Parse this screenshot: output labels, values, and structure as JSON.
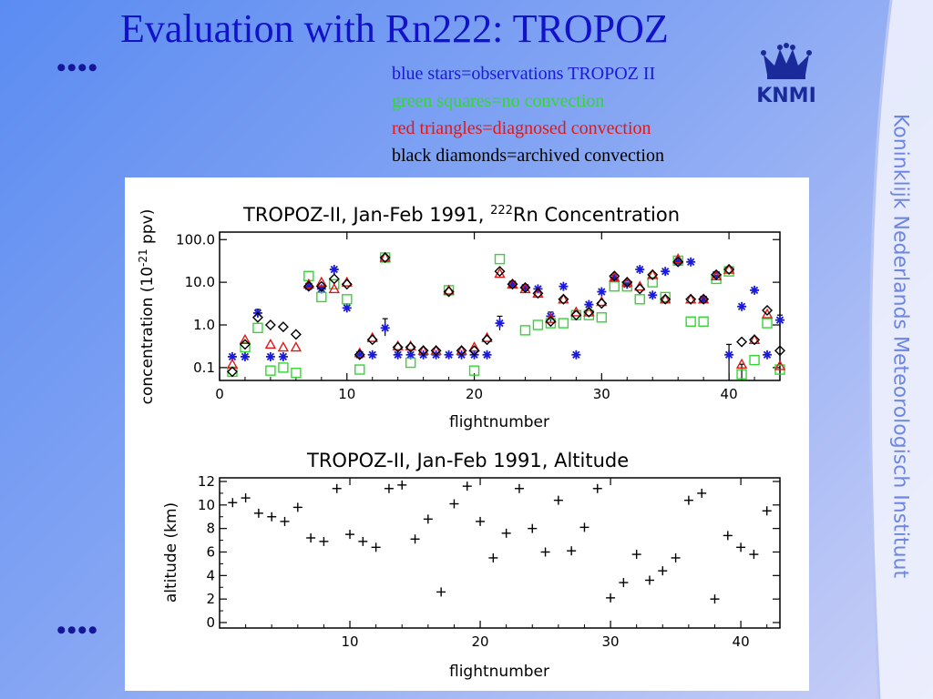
{
  "slide": {
    "title": "Evaluation with Rn222: TROPOZ",
    "bullet_top": "••••",
    "bullet_bottom": "••••",
    "legend": [
      {
        "text": "blue stars=observations TROPOZ II",
        "color": "#1a1ad8"
      },
      {
        "text": "green squares=no convection",
        "color": "#33d633"
      },
      {
        "text": "red triangles=diagnosed convection",
        "color": "#e01818"
      },
      {
        "text": "black diamonds=archived convection",
        "color": "#000000"
      }
    ],
    "logo_text": "KNMI",
    "side_text": "Koninklijk Nederlands Meteorologisch Instituut",
    "colors": {
      "title": "#1212c8",
      "logo": "#1a2a9a",
      "side_text": "#6e86e0"
    }
  },
  "chart_data": [
    {
      "type": "scatter",
      "title_main": "TROPOZ-II, Jan-Feb 1991, ",
      "title_sup": "222",
      "title_tail": "Rn Concentration",
      "ylabel_main": "concentration (10",
      "ylabel_sup": "-21",
      "ylabel_tail": " ppv)",
      "xlabel": "flightnumber",
      "yscale": "log",
      "xlim": [
        0,
        44
      ],
      "ylim": [
        0.05,
        150
      ],
      "xticks": [
        0,
        10,
        20,
        30,
        40
      ],
      "xtick_labels": [
        "0",
        "10",
        "20",
        "30",
        "40"
      ],
      "yticks": [
        0.1,
        1,
        10,
        100
      ],
      "ytick_labels": [
        "0.1",
        "1.0",
        "10.0",
        "100.0"
      ],
      "series": [
        {
          "marker": "star",
          "color": "#1a1ad8",
          "points": [
            [
              1,
              0.18
            ],
            [
              2,
              0.18
            ],
            [
              3,
              1.9
            ],
            [
              4,
              0.18
            ],
            [
              5,
              0.18
            ],
            [
              7,
              8
            ],
            [
              8,
              7
            ],
            [
              9,
              20
            ],
            [
              10,
              2.5
            ],
            [
              11,
              0.2
            ],
            [
              12,
              0.2
            ],
            [
              13,
              0.85
            ],
            [
              14,
              0.2
            ],
            [
              15,
              0.2
            ],
            [
              16,
              0.2
            ],
            [
              17,
              0.2
            ],
            [
              18,
              0.2
            ],
            [
              19,
              0.2
            ],
            [
              20,
              0.2
            ],
            [
              21,
              0.2
            ],
            [
              22,
              1.1
            ],
            [
              23,
              9
            ],
            [
              24,
              7.5
            ],
            [
              25,
              7
            ],
            [
              26,
              1.6
            ],
            [
              27,
              8
            ],
            [
              28,
              0.2
            ],
            [
              29,
              3
            ],
            [
              30,
              6
            ],
            [
              31,
              13
            ],
            [
              32,
              9
            ],
            [
              33,
              20
            ],
            [
              34,
              5
            ],
            [
              35,
              18
            ],
            [
              36,
              30
            ],
            [
              37,
              30
            ],
            [
              38,
              4
            ],
            [
              39,
              15
            ],
            [
              40,
              0.2
            ],
            [
              41,
              2.7
            ],
            [
              42,
              6.5
            ],
            [
              43,
              0.2
            ],
            [
              44,
              1.3
            ]
          ]
        },
        {
          "marker": "square",
          "color": "#33d633",
          "points": [
            [
              1,
              0.08
            ],
            [
              2,
              0.3
            ],
            [
              3,
              0.85
            ],
            [
              4,
              0.085
            ],
            [
              5,
              0.1
            ],
            [
              6,
              0.075
            ],
            [
              7,
              14
            ],
            [
              8,
              4.5
            ],
            [
              9,
              9
            ],
            [
              10,
              4
            ],
            [
              11,
              0.09
            ],
            [
              13,
              38
            ],
            [
              15,
              0.13
            ],
            [
              18,
              6.5
            ],
            [
              20,
              0.085
            ],
            [
              22,
              35
            ],
            [
              24,
              0.75
            ],
            [
              25,
              1
            ],
            [
              26,
              1.1
            ],
            [
              27,
              1.1
            ],
            [
              28,
              1.7
            ],
            [
              29,
              1.7
            ],
            [
              30,
              1.5
            ],
            [
              31,
              8
            ],
            [
              32,
              8
            ],
            [
              33,
              4
            ],
            [
              34,
              10
            ],
            [
              35,
              4.5
            ],
            [
              36,
              32
            ],
            [
              37,
              1.2
            ],
            [
              38,
              1.2
            ],
            [
              39,
              12
            ],
            [
              40,
              18
            ],
            [
              41,
              0.07
            ],
            [
              42,
              0.15
            ],
            [
              43,
              1.1
            ],
            [
              44,
              0.09
            ]
          ]
        },
        {
          "marker": "triangle",
          "color": "#e01818",
          "points": [
            [
              1,
              0.12
            ],
            [
              2,
              0.45
            ],
            [
              4,
              0.35
            ],
            [
              5,
              0.3
            ],
            [
              6,
              0.3
            ],
            [
              7,
              9
            ],
            [
              8,
              10
            ],
            [
              9,
              7
            ],
            [
              10,
              10
            ],
            [
              11,
              0.22
            ],
            [
              12,
              0.5
            ],
            [
              13,
              38
            ],
            [
              14,
              0.32
            ],
            [
              15,
              0.32
            ],
            [
              16,
              0.25
            ],
            [
              17,
              0.25
            ],
            [
              18,
              6.5
            ],
            [
              19,
              0.25
            ],
            [
              20,
              0.3
            ],
            [
              21,
              0.5
            ],
            [
              22,
              16
            ],
            [
              23,
              9
            ],
            [
              24,
              7
            ],
            [
              25,
              5.5
            ],
            [
              26,
              1.4
            ],
            [
              27,
              4
            ],
            [
              28,
              2
            ],
            [
              29,
              2
            ],
            [
              30,
              3.5
            ],
            [
              31,
              13
            ],
            [
              32,
              10
            ],
            [
              33,
              8
            ],
            [
              34,
              15
            ],
            [
              35,
              4
            ],
            [
              36,
              35
            ],
            [
              37,
              4
            ],
            [
              38,
              4
            ],
            [
              39,
              14
            ],
            [
              40,
              20
            ],
            [
              41,
              0.12
            ],
            [
              42,
              0.45
            ],
            [
              43,
              1.8
            ],
            [
              44,
              0.11
            ]
          ]
        },
        {
          "marker": "diamond",
          "color": "#000000",
          "points": [
            [
              1,
              0.08
            ],
            [
              2,
              0.35
            ],
            [
              3,
              1.5
            ],
            [
              4,
              1.0
            ],
            [
              5,
              0.9
            ],
            [
              6,
              0.6
            ],
            [
              7,
              8
            ],
            [
              8,
              8
            ],
            [
              9,
              12
            ],
            [
              10,
              9
            ],
            [
              11,
              0.2
            ],
            [
              12,
              0.45
            ],
            [
              13,
              38
            ],
            [
              14,
              0.3
            ],
            [
              15,
              0.3
            ],
            [
              16,
              0.25
            ],
            [
              17,
              0.25
            ],
            [
              18,
              6
            ],
            [
              19,
              0.25
            ],
            [
              20,
              0.25
            ],
            [
              21,
              0.45
            ],
            [
              22,
              18
            ],
            [
              23,
              9
            ],
            [
              24,
              7.5
            ],
            [
              25,
              5.5
            ],
            [
              26,
              1.2
            ],
            [
              27,
              4
            ],
            [
              28,
              1.7
            ],
            [
              29,
              2
            ],
            [
              30,
              3.2
            ],
            [
              31,
              14
            ],
            [
              32,
              10
            ],
            [
              33,
              7
            ],
            [
              34,
              15
            ],
            [
              35,
              4
            ],
            [
              36,
              30
            ],
            [
              37,
              4
            ],
            [
              38,
              4
            ],
            [
              39,
              15
            ],
            [
              40,
              20
            ],
            [
              41,
              0.4
            ],
            [
              42,
              0.45
            ],
            [
              43,
              2.2
            ],
            [
              44,
              0.25
            ]
          ]
        }
      ],
      "error_bars": [
        [
          3,
          1.5,
          2.3
        ],
        [
          10,
          2,
          3.1
        ],
        [
          13,
          0.55,
          1.4
        ],
        [
          22,
          0.75,
          1.6
        ],
        [
          26,
          1.2,
          2.0
        ],
        [
          40,
          0.05,
          0.35
        ],
        [
          41,
          0.05,
          0.12
        ],
        [
          44,
          0.9,
          1.7
        ]
      ]
    },
    {
      "type": "scatter",
      "title": "TROPOZ-II, Jan-Feb 1991, Altitude",
      "xlabel": "flightnumber",
      "ylabel": "altitude (km)",
      "xlim": [
        0,
        43
      ],
      "ylim": [
        0,
        12
      ],
      "xticks": [
        10,
        20,
        30,
        40
      ],
      "xtick_labels": [
        "10",
        "20",
        "30",
        "40"
      ],
      "yticks": [
        0,
        2,
        4,
        6,
        8,
        10,
        12
      ],
      "ytick_labels": [
        "0",
        "2",
        "4",
        "6",
        "8",
        "10",
        "12"
      ],
      "series": [
        {
          "marker": "plus",
          "color": "#000000",
          "points": [
            [
              1,
              10.2
            ],
            [
              2,
              10.6
            ],
            [
              3,
              9.3
            ],
            [
              4,
              9.0
            ],
            [
              5,
              8.6
            ],
            [
              6,
              9.8
            ],
            [
              7,
              7.2
            ],
            [
              8,
              6.9
            ],
            [
              9,
              11.4
            ],
            [
              10,
              7.5
            ],
            [
              11,
              6.9
            ],
            [
              12,
              6.4
            ],
            [
              13,
              11.4
            ],
            [
              14,
              11.7
            ],
            [
              15,
              7.1
            ],
            [
              16,
              8.8
            ],
            [
              17,
              2.6
            ],
            [
              18,
              10.1
            ],
            [
              19,
              11.6
            ],
            [
              20,
              8.6
            ],
            [
              21,
              5.5
            ],
            [
              22,
              7.6
            ],
            [
              23,
              11.4
            ],
            [
              24,
              8.0
            ],
            [
              25,
              6.0
            ],
            [
              26,
              10.4
            ],
            [
              27,
              6.1
            ],
            [
              28,
              8.1
            ],
            [
              29,
              11.4
            ],
            [
              30,
              2.1
            ],
            [
              31,
              3.4
            ],
            [
              32,
              5.8
            ],
            [
              33,
              3.6
            ],
            [
              34,
              4.4
            ],
            [
              35,
              5.5
            ],
            [
              36,
              10.4
            ],
            [
              37,
              11.0
            ],
            [
              38,
              2.0
            ],
            [
              39,
              7.4
            ],
            [
              40,
              6.4
            ],
            [
              41,
              5.8
            ],
            [
              42,
              9.5
            ]
          ]
        }
      ]
    }
  ]
}
